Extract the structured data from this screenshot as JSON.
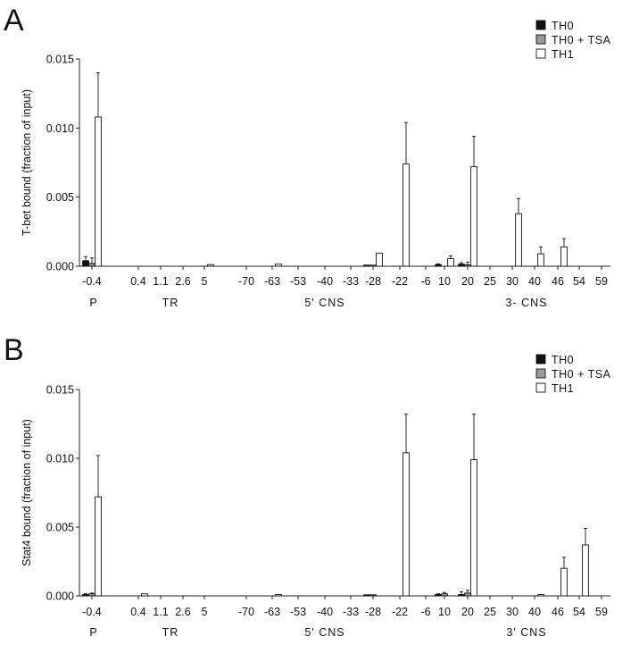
{
  "chart_data": [
    {
      "panel": "A",
      "type": "bar",
      "ylabel": "T-bet bound (fraction of input)",
      "ylim": [
        0,
        0.015
      ],
      "yticks": [
        "0.000",
        "0.005",
        "0.010",
        "0.015"
      ],
      "grid": false,
      "legend_position": "top-right",
      "categories": [
        "-0.4",
        "0.4",
        "1.1",
        "2.6",
        "5",
        "-70",
        "-63",
        "-53",
        "-40",
        "-33",
        "-28",
        "-22",
        "-6",
        "10",
        "20",
        "25",
        "30",
        "40",
        "46",
        "54",
        "59"
      ],
      "groups": [
        {
          "label": "P",
          "categories": [
            "-0.4"
          ]
        },
        {
          "label": "TR",
          "categories": [
            "0.4",
            "1.1",
            "2.6",
            "5"
          ]
        },
        {
          "label": "5' CNS",
          "categories": [
            "-70",
            "-63",
            "-53",
            "-40",
            "-33",
            "-28",
            "-22",
            "-6"
          ]
        },
        {
          "label": "3- CNS",
          "categories": [
            "10",
            "20",
            "25",
            "30",
            "40",
            "46",
            "54",
            "59"
          ]
        }
      ],
      "series": [
        {
          "name": "TH0",
          "color": "#111111",
          "values": [
            0.0004,
            0,
            0,
            0,
            0,
            0,
            0,
            0,
            0,
            0,
            8e-05,
            0,
            0,
            0.00012,
            0.00015,
            0,
            0,
            0,
            0,
            0,
            0
          ],
          "errors": [
            0.0003,
            0,
            0,
            0,
            0,
            0,
            0,
            0,
            0,
            0,
            0,
            0,
            0,
            5e-05,
            0.0001,
            0,
            0,
            0,
            0,
            0,
            0
          ]
        },
        {
          "name": "TH0 + TSA",
          "color": "#999999",
          "values": [
            0.0002,
            0,
            0,
            0,
            0,
            0,
            0,
            0,
            0,
            0,
            8e-05,
            0,
            0,
            0,
            0.0001,
            0,
            0,
            0,
            0,
            0,
            0
          ],
          "errors": [
            0.0004,
            0,
            0,
            0,
            0,
            0,
            0,
            0,
            0,
            0,
            0,
            0,
            0,
            0,
            0.0002,
            0,
            0,
            0,
            0,
            0,
            0
          ]
        },
        {
          "name": "TH1",
          "color": "#ffffff",
          "values": [
            0.0108,
            0,
            0,
            0,
            0.00012,
            0,
            0.00015,
            0,
            0,
            0,
            0.00095,
            0.0074,
            0,
            0.00055,
            0.0072,
            0,
            0.0038,
            0.0009,
            0.0014,
            0,
            0
          ],
          "errors": [
            0.0032,
            0,
            0,
            0,
            0,
            0,
            0,
            0,
            0,
            0,
            0,
            0.003,
            0,
            0.0002,
            0.0022,
            0,
            0.0011,
            0.0005,
            0.0006,
            0,
            0
          ]
        }
      ]
    },
    {
      "panel": "B",
      "type": "bar",
      "ylabel": "Stat4 bound (fraction of input)",
      "ylim": [
        0,
        0.015
      ],
      "yticks": [
        "0.000",
        "0.005",
        "0.010",
        "0.015"
      ],
      "grid": false,
      "legend_position": "top-right",
      "categories": [
        "-0.4",
        "0.4",
        "1.1",
        "2.6",
        "5",
        "-70",
        "-63",
        "-53",
        "-40",
        "-33",
        "-28",
        "-22",
        "-6",
        "10",
        "20",
        "25",
        "30",
        "40",
        "46",
        "54",
        "59"
      ],
      "groups": [
        {
          "label": "P",
          "categories": [
            "-0.4"
          ]
        },
        {
          "label": "TR",
          "categories": [
            "0.4",
            "1.1",
            "2.6",
            "5"
          ]
        },
        {
          "label": "5' CNS",
          "categories": [
            "-70",
            "-63",
            "-53",
            "-40",
            "-33",
            "-28",
            "-22",
            "-6"
          ]
        },
        {
          "label": "3' CNS",
          "categories": [
            "10",
            "20",
            "25",
            "30",
            "40",
            "46",
            "54",
            "59"
          ]
        }
      ],
      "series": [
        {
          "name": "TH0",
          "color": "#111111",
          "values": [
            0.0001,
            0,
            0,
            0,
            0,
            0,
            0,
            0,
            0,
            0,
            8e-05,
            0,
            0,
            0.0001,
            0.0001,
            0,
            0,
            0,
            0,
            0,
            0
          ],
          "errors": [
            5e-05,
            0,
            0,
            0,
            0,
            0,
            0,
            0,
            0,
            0,
            0,
            0,
            0,
            5e-05,
            0.0002,
            0,
            0,
            0,
            0,
            0,
            0
          ]
        },
        {
          "name": "TH0 + TSA",
          "color": "#999999",
          "values": [
            0.00015,
            0,
            0,
            0,
            0,
            0,
            0,
            0,
            0,
            0,
            8e-05,
            0,
            0,
            0.00015,
            0.0002,
            0,
            0,
            0,
            0,
            0,
            0
          ],
          "errors": [
            5e-05,
            0,
            0,
            0,
            0,
            0,
            0,
            0,
            0,
            0,
            0,
            0,
            0,
            0.0001,
            0.0002,
            0,
            0,
            0,
            0,
            0,
            0
          ]
        },
        {
          "name": "TH1",
          "color": "#ffffff",
          "values": [
            0.0072,
            0.00015,
            0,
            0,
            0,
            0,
            0.0001,
            0,
            0,
            0,
            0,
            0.0104,
            0,
            0,
            0.0099,
            0,
            0,
            0.0001,
            0.002,
            0.0037,
            0
          ],
          "errors": [
            0.003,
            0,
            0,
            0,
            0,
            0,
            0,
            0,
            0,
            0,
            0,
            0.0028,
            0,
            0,
            0.0033,
            0,
            0,
            0,
            0.0008,
            0.0012,
            0
          ]
        }
      ]
    }
  ]
}
